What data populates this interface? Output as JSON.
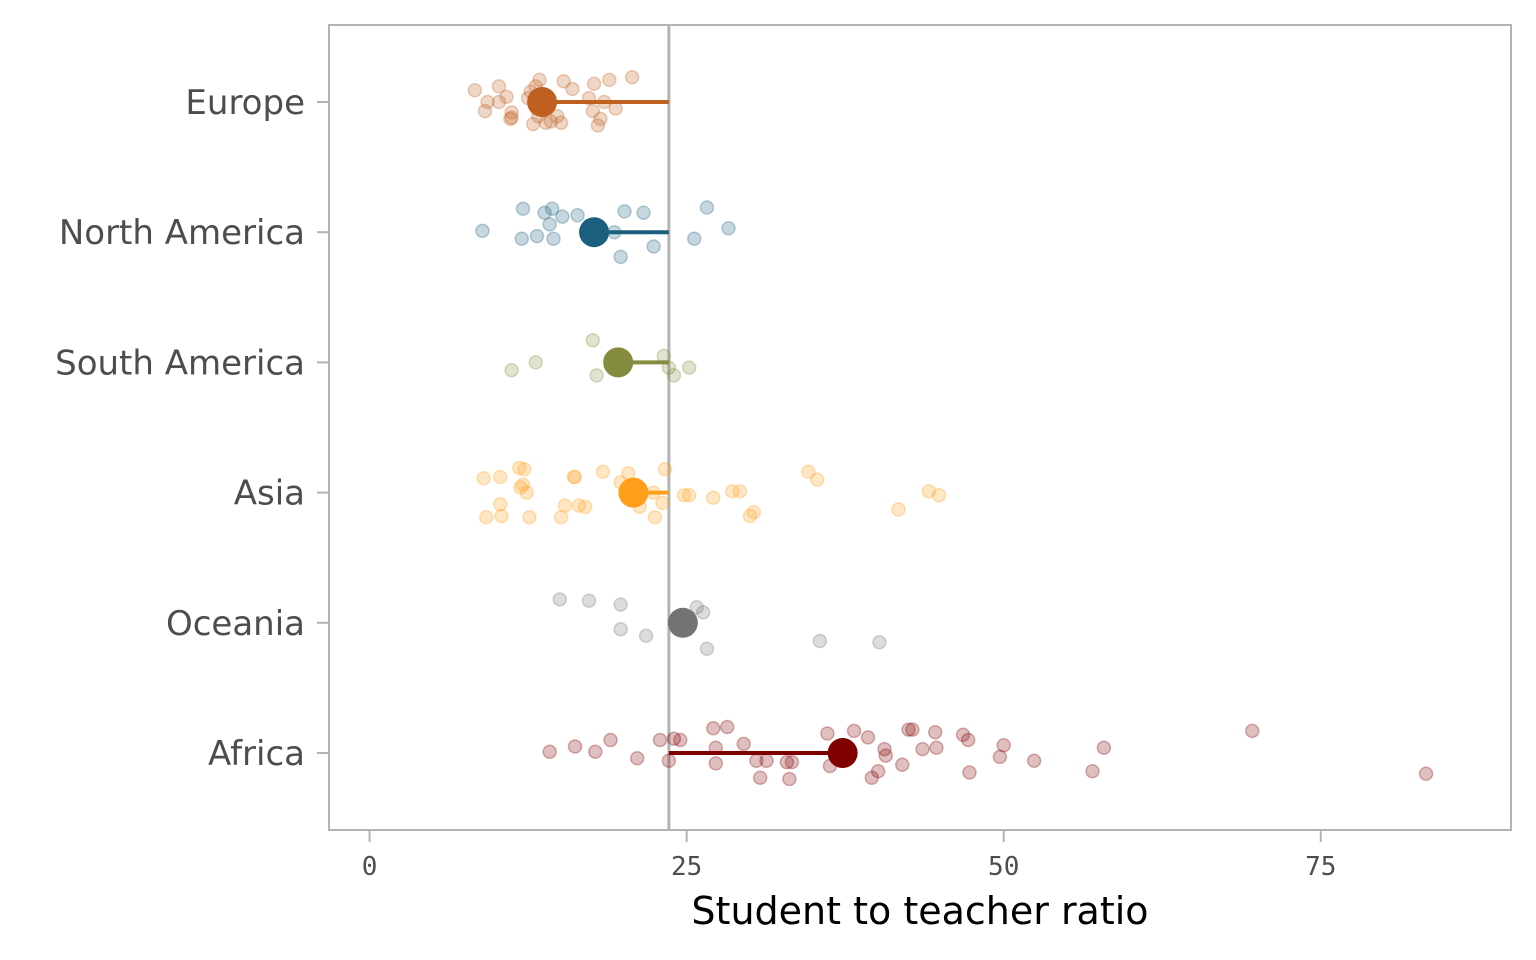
{
  "chart_data": {
    "type": "scatter",
    "title": "",
    "xlabel": "Student to teacher ratio",
    "ylabel": "",
    "xlim": [
      -3.2,
      90
    ],
    "x_ticks": [
      0,
      25,
      50,
      75
    ],
    "x_tick_labels": [
      "0",
      "25",
      "50",
      "75"
    ],
    "grid": false,
    "legend": "none",
    "world_average": 23.6,
    "reference_line_color": "#b3b3b3",
    "frame_color": "#b3b3b3",
    "categories": [
      "Europe",
      "North America",
      "South America",
      "Asia",
      "Oceania",
      "Africa"
    ],
    "series": [
      {
        "name": "Europe",
        "color": "#bf6021",
        "mean": 13.6,
        "points": [
          {
            "x": 8.3,
            "y": 0.09
          },
          {
            "x": 9.3,
            "y": 0.0
          },
          {
            "x": 9.1,
            "y": -0.07
          },
          {
            "x": 10.2,
            "y": 0.12
          },
          {
            "x": 10.2,
            "y": 0.0
          },
          {
            "x": 10.8,
            "y": 0.04
          },
          {
            "x": 11.1,
            "y": -0.13
          },
          {
            "x": 11.2,
            "y": -0.12
          },
          {
            "x": 11.2,
            "y": -0.08
          },
          {
            "x": 12.5,
            "y": 0.03
          },
          {
            "x": 12.7,
            "y": 0.08
          },
          {
            "x": 13.1,
            "y": 0.12
          },
          {
            "x": 12.9,
            "y": -0.17
          },
          {
            "x": 13.3,
            "y": -0.11
          },
          {
            "x": 13.4,
            "y": 0.17
          },
          {
            "x": 13.9,
            "y": -0.16
          },
          {
            "x": 14.3,
            "y": -0.15
          },
          {
            "x": 14.8,
            "y": -0.11
          },
          {
            "x": 15.1,
            "y": -0.16
          },
          {
            "x": 15.3,
            "y": 0.16
          },
          {
            "x": 16.0,
            "y": 0.1
          },
          {
            "x": 17.3,
            "y": 0.03
          },
          {
            "x": 17.6,
            "y": -0.07
          },
          {
            "x": 17.7,
            "y": 0.14
          },
          {
            "x": 18.2,
            "y": -0.13
          },
          {
            "x": 18.0,
            "y": -0.18
          },
          {
            "x": 18.5,
            "y": 0.0
          },
          {
            "x": 18.9,
            "y": 0.17
          },
          {
            "x": 19.4,
            "y": -0.05
          },
          {
            "x": 20.7,
            "y": 0.19
          }
        ]
      },
      {
        "name": "North America",
        "color": "#1b5f7f",
        "mean": 17.7,
        "points": [
          {
            "x": 8.9,
            "y": 0.01
          },
          {
            "x": 12.0,
            "y": -0.05
          },
          {
            "x": 12.1,
            "y": 0.18
          },
          {
            "x": 13.2,
            "y": -0.03
          },
          {
            "x": 13.8,
            "y": 0.15
          },
          {
            "x": 14.2,
            "y": 0.06
          },
          {
            "x": 14.4,
            "y": 0.18
          },
          {
            "x": 14.5,
            "y": -0.05
          },
          {
            "x": 15.2,
            "y": 0.12
          },
          {
            "x": 16.4,
            "y": 0.13
          },
          {
            "x": 19.3,
            "y": 0.0
          },
          {
            "x": 19.8,
            "y": -0.19
          },
          {
            "x": 20.1,
            "y": 0.16
          },
          {
            "x": 21.6,
            "y": 0.15
          },
          {
            "x": 22.4,
            "y": -0.11
          },
          {
            "x": 25.6,
            "y": -0.05
          },
          {
            "x": 26.6,
            "y": 0.19
          },
          {
            "x": 28.3,
            "y": 0.03
          }
        ]
      },
      {
        "name": "South America",
        "color": "#868c3f",
        "mean": 19.6,
        "points": [
          {
            "x": 11.2,
            "y": -0.06
          },
          {
            "x": 13.1,
            "y": 0.0
          },
          {
            "x": 17.6,
            "y": 0.17
          },
          {
            "x": 17.9,
            "y": -0.1
          },
          {
            "x": 23.2,
            "y": 0.05
          },
          {
            "x": 23.6,
            "y": -0.04
          },
          {
            "x": 24.0,
            "y": -0.1
          },
          {
            "x": 25.2,
            "y": -0.04
          }
        ]
      },
      {
        "name": "Asia",
        "color": "#ff9e1b",
        "mean": 20.8,
        "points": [
          {
            "x": 9.0,
            "y": 0.11
          },
          {
            "x": 9.2,
            "y": -0.19
          },
          {
            "x": 10.3,
            "y": 0.12
          },
          {
            "x": 10.3,
            "y": -0.09
          },
          {
            "x": 10.4,
            "y": -0.18
          },
          {
            "x": 11.8,
            "y": 0.19
          },
          {
            "x": 11.9,
            "y": 0.04
          },
          {
            "x": 12.1,
            "y": 0.06
          },
          {
            "x": 12.2,
            "y": 0.18
          },
          {
            "x": 12.4,
            "y": 0.0
          },
          {
            "x": 12.6,
            "y": -0.19
          },
          {
            "x": 15.1,
            "y": -0.19
          },
          {
            "x": 15.4,
            "y": -0.1
          },
          {
            "x": 16.1,
            "y": 0.12
          },
          {
            "x": 16.2,
            "y": 0.12
          },
          {
            "x": 16.5,
            "y": -0.1
          },
          {
            "x": 17.0,
            "y": -0.11
          },
          {
            "x": 18.4,
            "y": 0.16
          },
          {
            "x": 19.8,
            "y": 0.08
          },
          {
            "x": 20.4,
            "y": 0.15
          },
          {
            "x": 21.3,
            "y": -0.11
          },
          {
            "x": 22.4,
            "y": 0.0
          },
          {
            "x": 22.5,
            "y": -0.19
          },
          {
            "x": 23.1,
            "y": -0.08
          },
          {
            "x": 23.3,
            "y": 0.18
          },
          {
            "x": 24.8,
            "y": -0.02
          },
          {
            "x": 25.2,
            "y": -0.02
          },
          {
            "x": 27.1,
            "y": -0.04
          },
          {
            "x": 28.6,
            "y": 0.01
          },
          {
            "x": 29.2,
            "y": 0.01
          },
          {
            "x": 30.0,
            "y": -0.18
          },
          {
            "x": 30.3,
            "y": -0.15
          },
          {
            "x": 34.6,
            "y": 0.16
          },
          {
            "x": 35.3,
            "y": 0.1
          },
          {
            "x": 41.7,
            "y": -0.13
          },
          {
            "x": 44.1,
            "y": 0.01
          },
          {
            "x": 44.9,
            "y": -0.02
          }
        ]
      },
      {
        "name": "Oceania",
        "color": "#737373",
        "mean": 24.7,
        "points": [
          {
            "x": 15.0,
            "y": 0.18
          },
          {
            "x": 17.3,
            "y": 0.17
          },
          {
            "x": 19.8,
            "y": 0.14
          },
          {
            "x": 19.8,
            "y": -0.05
          },
          {
            "x": 21.8,
            "y": -0.1
          },
          {
            "x": 25.8,
            "y": 0.12
          },
          {
            "x": 26.3,
            "y": 0.08
          },
          {
            "x": 26.6,
            "y": -0.2
          },
          {
            "x": 35.5,
            "y": -0.14
          },
          {
            "x": 40.2,
            "y": -0.15
          }
        ]
      },
      {
        "name": "Africa",
        "color": "#800000",
        "mean": 37.3,
        "points": [
          {
            "x": 14.2,
            "y": 0.01
          },
          {
            "x": 16.2,
            "y": 0.05
          },
          {
            "x": 17.8,
            "y": 0.01
          },
          {
            "x": 19.0,
            "y": 0.1
          },
          {
            "x": 21.1,
            "y": -0.04
          },
          {
            "x": 22.9,
            "y": 0.1
          },
          {
            "x": 23.6,
            "y": -0.06
          },
          {
            "x": 24.0,
            "y": 0.11
          },
          {
            "x": 24.5,
            "y": 0.1
          },
          {
            "x": 27.1,
            "y": 0.19
          },
          {
            "x": 27.3,
            "y": 0.04
          },
          {
            "x": 27.3,
            "y": -0.08
          },
          {
            "x": 28.2,
            "y": 0.2
          },
          {
            "x": 29.5,
            "y": 0.07
          },
          {
            "x": 30.5,
            "y": -0.06
          },
          {
            "x": 30.8,
            "y": -0.19
          },
          {
            "x": 31.3,
            "y": -0.06
          },
          {
            "x": 32.9,
            "y": -0.07
          },
          {
            "x": 33.1,
            "y": -0.2
          },
          {
            "x": 33.3,
            "y": -0.07
          },
          {
            "x": 36.1,
            "y": 0.15
          },
          {
            "x": 36.3,
            "y": -0.1
          },
          {
            "x": 38.2,
            "y": 0.17
          },
          {
            "x": 39.3,
            "y": 0.12
          },
          {
            "x": 39.6,
            "y": -0.19
          },
          {
            "x": 40.1,
            "y": -0.14
          },
          {
            "x": 40.6,
            "y": 0.03
          },
          {
            "x": 40.7,
            "y": -0.02
          },
          {
            "x": 42.0,
            "y": -0.09
          },
          {
            "x": 42.5,
            "y": 0.18
          },
          {
            "x": 42.8,
            "y": 0.18
          },
          {
            "x": 43.6,
            "y": 0.03
          },
          {
            "x": 44.6,
            "y": 0.16
          },
          {
            "x": 44.7,
            "y": 0.04
          },
          {
            "x": 46.8,
            "y": 0.14
          },
          {
            "x": 47.2,
            "y": 0.1
          },
          {
            "x": 47.3,
            "y": -0.15
          },
          {
            "x": 49.7,
            "y": -0.03
          },
          {
            "x": 50.0,
            "y": 0.06
          },
          {
            "x": 52.4,
            "y": -0.06
          },
          {
            "x": 57.0,
            "y": -0.14
          },
          {
            "x": 57.9,
            "y": 0.04
          },
          {
            "x": 69.6,
            "y": 0.17
          },
          {
            "x": 83.3,
            "y": -0.16
          }
        ]
      }
    ]
  }
}
